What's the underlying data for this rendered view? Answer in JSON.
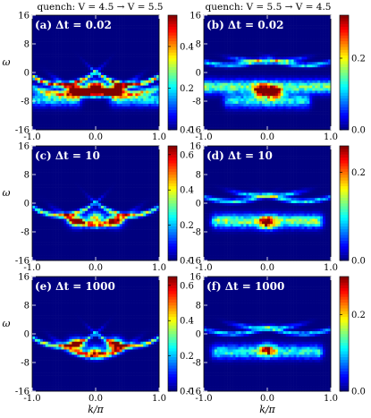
{
  "titles": {
    "left": "quench: V = 4.5 → V = 5.5",
    "right": "quench: V = 5.5 → V = 4.5"
  },
  "colormap": [
    "#00007f",
    "#0000ff",
    "#007fff",
    "#00ffff",
    "#7fff7f",
    "#ffff00",
    "#ff7f00",
    "#ff0000",
    "#7f0000"
  ],
  "chart_data": [
    {
      "type": "heatmap",
      "panel": "a",
      "label": "(a) Δt = 0.02",
      "xlabel": "",
      "ylabel": "ω",
      "xlim": [
        -1.0,
        1.0
      ],
      "ylim": [
        -16,
        16
      ],
      "xticks": [
        "-1.0",
        "0.0",
        "1.0"
      ],
      "yticks": [
        "-16",
        "-8",
        "0",
        "8",
        "16"
      ],
      "colorbar": {
        "range": [
          0.0,
          0.55
        ],
        "ticks": [
          {
            "v": 0.0,
            "label": "0.0"
          },
          {
            "v": 0.2,
            "label": "0.2"
          },
          {
            "v": 0.4,
            "label": "0.4"
          }
        ]
      },
      "features": [
        {
          "kind": "arc",
          "k0": 0.0,
          "w0": -6.0,
          "curv": 10.0,
          "width": 0.9,
          "int": 0.5
        },
        {
          "kind": "arc",
          "k0": -0.55,
          "w0": -3.5,
          "curv": 12.0,
          "width": 0.6,
          "int": 0.45
        },
        {
          "kind": "arc",
          "k0": 0.55,
          "w0": -3.5,
          "curv": 12.0,
          "width": 0.6,
          "int": 0.45
        },
        {
          "kind": "arc",
          "k0": -0.5,
          "w0": -6.0,
          "curv": 7.0,
          "width": 1.0,
          "int": 0.3
        },
        {
          "kind": "arc",
          "k0": 0.5,
          "w0": -6.0,
          "curv": 7.0,
          "width": 1.0,
          "int": 0.3
        },
        {
          "kind": "spot",
          "k": -0.3,
          "w": -5.0,
          "int": 0.55
        },
        {
          "kind": "spot",
          "k": 0.0,
          "w": -4.0,
          "int": 0.5
        },
        {
          "kind": "spot",
          "k": 0.3,
          "w": -5.0,
          "int": 0.55
        },
        {
          "kind": "band",
          "k0": -1.0,
          "k1": -0.3,
          "w": -7.5,
          "int": 0.2
        },
        {
          "kind": "band",
          "k0": 0.3,
          "k1": 1.0,
          "w": -7.5,
          "int": 0.2
        }
      ]
    },
    {
      "type": "heatmap",
      "panel": "b",
      "label": "(b) Δt = 0.02",
      "xlabel": "",
      "ylabel": "",
      "xlim": [
        -1.0,
        1.0
      ],
      "ylim": [
        -16,
        16
      ],
      "xticks": [
        "-1.0",
        "0.0",
        "1.0"
      ],
      "yticks": [
        "-16",
        "-8",
        "0",
        "8",
        "16"
      ],
      "colorbar": {
        "range": [
          0.0,
          0.32
        ],
        "ticks": [
          {
            "v": 0.0,
            "label": "0.0"
          },
          {
            "v": 0.2,
            "label": "0.2"
          }
        ]
      },
      "features": [
        {
          "kind": "arc",
          "k0": 0.0,
          "w0": 3.0,
          "curv": 3.0,
          "width": 0.6,
          "int": 0.15
        },
        {
          "kind": "arc",
          "k0": -0.6,
          "w0": 2.0,
          "curv": 6.0,
          "width": 0.6,
          "int": 0.12
        },
        {
          "kind": "arc",
          "k0": 0.6,
          "w0": 2.0,
          "curv": 6.0,
          "width": 0.6,
          "int": 0.12
        },
        {
          "kind": "band",
          "k0": -1.0,
          "k1": 1.0,
          "w": -4.0,
          "int": 0.15
        },
        {
          "kind": "spot",
          "k": -0.1,
          "w": -5.0,
          "int": 0.3
        },
        {
          "kind": "spot",
          "k": 0.1,
          "w": -5.5,
          "int": 0.32
        },
        {
          "kind": "band",
          "k0": -0.6,
          "k1": 0.6,
          "w": -8.0,
          "int": 0.12
        }
      ]
    },
    {
      "type": "heatmap",
      "panel": "c",
      "label": "(c) Δt = 10",
      "xlabel": "",
      "ylabel": "ω",
      "xlim": [
        -1.0,
        1.0
      ],
      "ylim": [
        -16,
        16
      ],
      "xticks": [
        "-1.0",
        "0.0",
        "1.0"
      ],
      "yticks": [
        "-16",
        "-8",
        "0",
        "8",
        "16"
      ],
      "colorbar": {
        "range": [
          0.0,
          0.65
        ],
        "ticks": [
          {
            "v": 0.0,
            "label": "0.0"
          },
          {
            "v": 0.2,
            "label": "0.2"
          },
          {
            "v": 0.4,
            "label": "0.4"
          },
          {
            "v": 0.6,
            "label": "0.6"
          }
        ]
      },
      "features": [
        {
          "kind": "arc",
          "k0": 0.0,
          "w0": -6.0,
          "curv": 10.0,
          "width": 0.9,
          "int": 0.45
        },
        {
          "kind": "arc",
          "k0": -0.55,
          "w0": -3.5,
          "curv": 12.0,
          "width": 0.6,
          "int": 0.4
        },
        {
          "kind": "arc",
          "k0": 0.55,
          "w0": -3.5,
          "curv": 12.0,
          "width": 0.6,
          "int": 0.4
        },
        {
          "kind": "spot",
          "k": -0.3,
          "w": -5.0,
          "int": 0.45
        },
        {
          "kind": "spot",
          "k": 0.3,
          "w": -5.0,
          "int": 0.45
        },
        {
          "kind": "spot",
          "k": 0.0,
          "w": -4.0,
          "int": 0.4
        }
      ]
    },
    {
      "type": "heatmap",
      "panel": "d",
      "label": "(d) Δt = 10",
      "xlabel": "",
      "ylabel": "",
      "xlim": [
        -1.0,
        1.0
      ],
      "ylim": [
        -16,
        16
      ],
      "xticks": [
        "-1.0",
        "0.0",
        "1.0"
      ],
      "yticks": [
        "-16",
        "-8",
        "0",
        "8",
        "16"
      ],
      "colorbar": {
        "range": [
          0.0,
          0.26
        ],
        "ticks": [
          {
            "v": 0.0,
            "label": "0.0"
          },
          {
            "v": 0.2,
            "label": "0.2"
          }
        ]
      },
      "features": [
        {
          "kind": "arc",
          "k0": 0.0,
          "w0": 2.0,
          "curv": 4.0,
          "width": 0.6,
          "int": 0.1
        },
        {
          "kind": "arc",
          "k0": -0.55,
          "w0": 0.5,
          "curv": 6.0,
          "width": 0.6,
          "int": 0.1
        },
        {
          "kind": "arc",
          "k0": 0.55,
          "w0": 0.5,
          "curv": 6.0,
          "width": 0.6,
          "int": 0.1
        },
        {
          "kind": "band",
          "k0": -0.8,
          "k1": 0.8,
          "w": -5.0,
          "int": 0.13
        },
        {
          "kind": "spot",
          "k": 0.0,
          "w": -5.5,
          "int": 0.2
        }
      ]
    },
    {
      "type": "heatmap",
      "panel": "e",
      "label": "(e) Δt = 1000",
      "xlabel": "k/π",
      "ylabel": "ω",
      "xlim": [
        -1.0,
        1.0
      ],
      "ylim": [
        -16,
        16
      ],
      "xticks": [
        "-1.0",
        "0.0",
        "1.0"
      ],
      "yticks": [
        "-16",
        "-8",
        "0",
        "8",
        "16"
      ],
      "colorbar": {
        "range": [
          0.0,
          0.65
        ],
        "ticks": [
          {
            "v": 0.0,
            "label": "0.0"
          },
          {
            "v": 0.2,
            "label": "0.2"
          },
          {
            "v": 0.4,
            "label": "0.4"
          },
          {
            "v": 0.6,
            "label": "0.6"
          }
        ]
      },
      "features": [
        {
          "kind": "arc",
          "k0": 0.0,
          "w0": -6.0,
          "curv": 10.0,
          "width": 0.9,
          "int": 0.45
        },
        {
          "kind": "arc",
          "k0": -0.55,
          "w0": -3.5,
          "curv": 12.0,
          "width": 0.6,
          "int": 0.4
        },
        {
          "kind": "arc",
          "k0": 0.55,
          "w0": -3.5,
          "curv": 12.0,
          "width": 0.6,
          "int": 0.4
        },
        {
          "kind": "spot",
          "k": -0.3,
          "w": -3.0,
          "int": 0.6
        },
        {
          "kind": "spot",
          "k": 0.3,
          "w": -3.0,
          "int": 0.6
        },
        {
          "kind": "spot",
          "k": 0.0,
          "w": -5.0,
          "int": 0.35
        }
      ]
    },
    {
      "type": "heatmap",
      "panel": "f",
      "label": "(f) Δt = 1000",
      "xlabel": "k/π",
      "ylabel": "",
      "xlim": [
        -1.0,
        1.0
      ],
      "ylim": [
        -16,
        16
      ],
      "xticks": [
        "-1.0",
        "0.0",
        "1.0"
      ],
      "yticks": [
        "-16",
        "-8",
        "0",
        "8",
        "16"
      ],
      "colorbar": {
        "range": [
          0.0,
          0.3
        ],
        "ticks": [
          {
            "v": 0.0,
            "label": "0.0"
          },
          {
            "v": 0.2,
            "label": "0.2"
          }
        ]
      },
      "features": [
        {
          "kind": "arc",
          "k0": 0.0,
          "w0": 1.5,
          "curv": 4.0,
          "width": 0.6,
          "int": 0.1
        },
        {
          "kind": "arc",
          "k0": -0.55,
          "w0": 0.0,
          "curv": 6.0,
          "width": 0.6,
          "int": 0.1
        },
        {
          "kind": "arc",
          "k0": 0.55,
          "w0": 0.0,
          "curv": 6.0,
          "width": 0.6,
          "int": 0.1
        },
        {
          "kind": "band",
          "k0": -0.8,
          "k1": 0.8,
          "w": -5.0,
          "int": 0.12
        },
        {
          "kind": "spot",
          "k": 0.0,
          "w": -4.5,
          "int": 0.2
        }
      ]
    }
  ]
}
